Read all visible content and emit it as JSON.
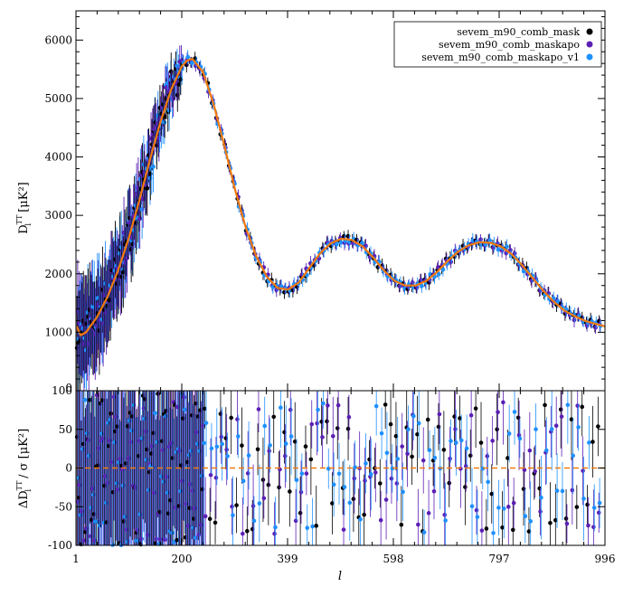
{
  "chart_data": [
    {
      "panel": "main",
      "type": "scatter",
      "xlabel": "l",
      "ylabel": "D_l^TT [μK²]",
      "xlim": [
        1,
        996
      ],
      "ylim": [
        0,
        6500
      ],
      "xticks": [
        "1",
        "200",
        "399",
        "598",
        "797",
        "996"
      ],
      "yticks": [
        "0",
        "1000",
        "2000",
        "3000",
        "4000",
        "5000",
        "6000"
      ],
      "legend_position": "top-right",
      "series": [
        {
          "name": "sevem_m90_comb_mask",
          "color": "#000000"
        },
        {
          "name": "sevem_m90_comb_maskapo",
          "color": "#5b1fb5"
        },
        {
          "name": "sevem_m90_comb_maskapo_v1",
          "color": "#1e90ff"
        }
      ],
      "model_color": "#f07a10",
      "model_curve": {
        "x": [
          2,
          10,
          20,
          40,
          60,
          80,
          100,
          120,
          140,
          160,
          180,
          200,
          210,
          220,
          240,
          260,
          280,
          300,
          320,
          340,
          360,
          380,
          400,
          420,
          440,
          460,
          480,
          500,
          520,
          540,
          560,
          580,
          600,
          620,
          640,
          660,
          680,
          700,
          720,
          740,
          760,
          780,
          800,
          820,
          840,
          860,
          880,
          900,
          920,
          940,
          960,
          980,
          996
        ],
        "y": [
          1100,
          950,
          1000,
          1250,
          1600,
          2050,
          2600,
          3250,
          3950,
          4600,
          5150,
          5550,
          5650,
          5680,
          5450,
          4900,
          4200,
          3450,
          2800,
          2300,
          1950,
          1760,
          1730,
          1850,
          2100,
          2350,
          2520,
          2600,
          2580,
          2470,
          2280,
          2060,
          1880,
          1800,
          1800,
          1880,
          2030,
          2220,
          2380,
          2490,
          2540,
          2530,
          2470,
          2340,
          2150,
          1930,
          1710,
          1520,
          1370,
          1270,
          1190,
          1140,
          1100
        ]
      }
    },
    {
      "panel": "residual",
      "type": "scatter",
      "xlabel": "l",
      "ylabel": "ΔD_l^TT / σ [μK²]",
      "xlim": [
        1,
        996
      ],
      "ylim": [
        -100,
        100
      ],
      "yticks": [
        "-100",
        "-50",
        "0",
        "50",
        "100"
      ],
      "zero_line": true,
      "zero_line_color": "#f07a10"
    }
  ]
}
